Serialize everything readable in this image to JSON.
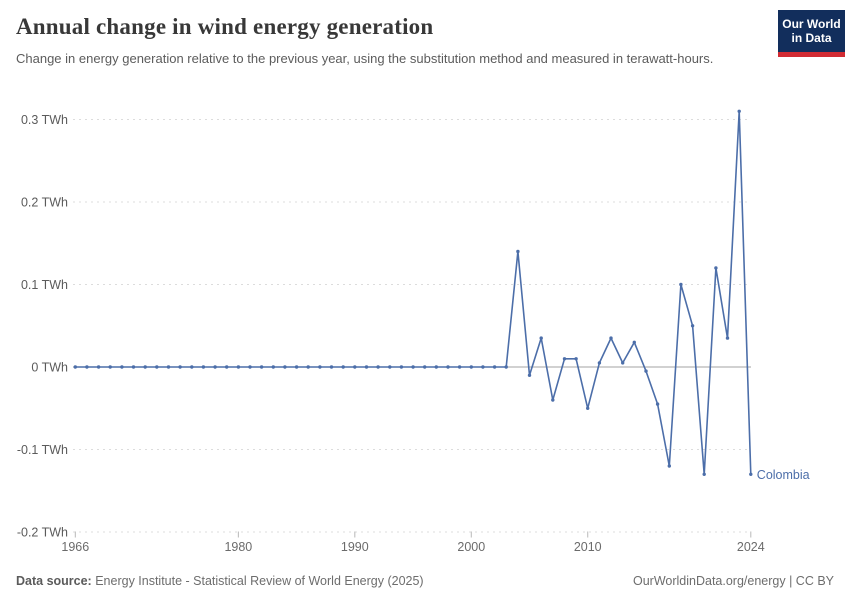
{
  "header": {
    "title": "Annual change in wind energy generation",
    "subtitle": "Change in energy generation relative to the previous year, using the substitution method and measured in terawatt-hours.",
    "logo": {
      "line1": "Our World",
      "line2": "in Data"
    }
  },
  "footer": {
    "source_label": "Data source:",
    "source_text": " Energy Institute - Statistical Review of World Energy (2025)",
    "right_text": "OurWorldinData.org/energy | CC BY"
  },
  "colors": {
    "series": "#4C6EA9",
    "grid_dashed": "#dcdcdc",
    "zero_line": "#a3a3a3",
    "axis_tick": "#b8b8b8",
    "axis_label": "#5b5b5b",
    "x_label": "#6b6b6b",
    "logo_bg": "#122E5C",
    "logo_stripe": "#D12B33"
  },
  "chart_data": {
    "type": "line",
    "title": "Annual change in wind energy generation",
    "xlabel": "",
    "ylabel": "",
    "unit": "TWh",
    "grid": "horizontal-dashed",
    "legend_position": "end-of-line-label",
    "xlim": [
      1966,
      2024
    ],
    "ylim": [
      -0.2,
      0.32
    ],
    "x_ticks": [
      {
        "value": 1966,
        "label": "1966"
      },
      {
        "value": 1980,
        "label": "1980"
      },
      {
        "value": 1990,
        "label": "1990"
      },
      {
        "value": 2000,
        "label": "2000"
      },
      {
        "value": 2010,
        "label": "2010"
      },
      {
        "value": 2024,
        "label": "2024"
      }
    ],
    "y_ticks": [
      {
        "value": 0.3,
        "label": "0.3 TWh"
      },
      {
        "value": 0.2,
        "label": "0.2 TWh"
      },
      {
        "value": 0.1,
        "label": "0.1 TWh"
      },
      {
        "value": 0,
        "label": "0 TWh"
      },
      {
        "value": -0.1,
        "label": "-0.1 TWh"
      },
      {
        "value": -0.2,
        "label": "-0.2 TWh"
      }
    ],
    "x": [
      1966,
      1967,
      1968,
      1969,
      1970,
      1971,
      1972,
      1973,
      1974,
      1975,
      1976,
      1977,
      1978,
      1979,
      1980,
      1981,
      1982,
      1983,
      1984,
      1985,
      1986,
      1987,
      1988,
      1989,
      1990,
      1991,
      1992,
      1993,
      1994,
      1995,
      1996,
      1997,
      1998,
      1999,
      2000,
      2001,
      2002,
      2003,
      2004,
      2005,
      2006,
      2007,
      2008,
      2009,
      2010,
      2011,
      2012,
      2013,
      2014,
      2015,
      2016,
      2017,
      2018,
      2019,
      2020,
      2021,
      2022,
      2023,
      2024
    ],
    "series": [
      {
        "name": "Colombia",
        "end_label": "Colombia",
        "color": "#4C6EA9",
        "values": [
          0,
          0,
          0,
          0,
          0,
          0,
          0,
          0,
          0,
          0,
          0,
          0,
          0,
          0,
          0,
          0,
          0,
          0,
          0,
          0,
          0,
          0,
          0,
          0,
          0,
          0,
          0,
          0,
          0,
          0,
          0,
          0,
          0,
          0,
          0,
          0,
          0,
          0,
          0.14,
          -0.01,
          0.035,
          -0.04,
          0.01,
          0.01,
          -0.05,
          0.005,
          0.035,
          0.005,
          0.03,
          -0.005,
          -0.045,
          -0.12,
          0.1,
          0.05,
          -0.13,
          0.12,
          0.035,
          0.31,
          -0.13
        ]
      }
    ]
  }
}
